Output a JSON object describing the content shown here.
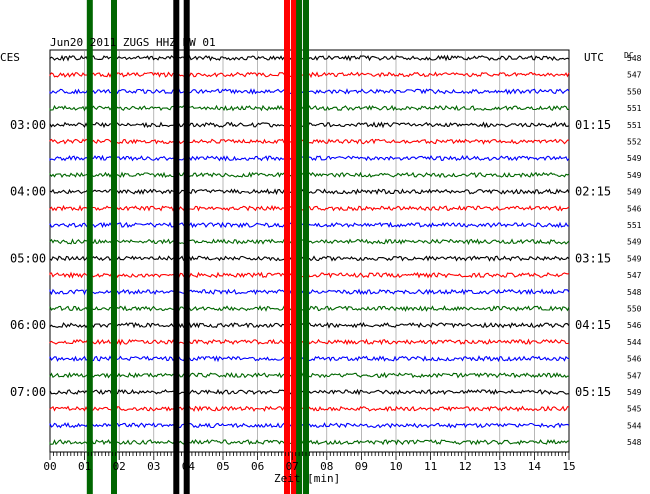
{
  "chart_data": {
    "type": "line",
    "title": "Jun20 2011  ZUGS HHZ BW 01",
    "left_label": "CES",
    "right_label": "UTC",
    "dc_label": "DC",
    "xlabel": "Zeit [min]",
    "xlim": [
      0,
      15
    ],
    "x_ticks": [
      "00",
      "01",
      "02",
      "03",
      "04",
      "05",
      "06",
      "07",
      "08",
      "09",
      "10",
      "11",
      "12",
      "13",
      "14",
      "15"
    ],
    "left_time_labels": [
      {
        "row": 4,
        "text": "03:00"
      },
      {
        "row": 8,
        "text": "04:00"
      },
      {
        "row": 12,
        "text": "05:00"
      },
      {
        "row": 16,
        "text": "06:00"
      },
      {
        "row": 20,
        "text": "07:00"
      }
    ],
    "right_time_labels": [
      {
        "row": 4,
        "text": "01:15"
      },
      {
        "row": 8,
        "text": "02:15"
      },
      {
        "row": 12,
        "text": "03:15"
      },
      {
        "row": 16,
        "text": "04:15"
      },
      {
        "row": 20,
        "text": "05:15"
      }
    ],
    "trace_colors": [
      "#000000",
      "#ff0000",
      "#0000ff",
      "#006600"
    ],
    "dc_values": [
      548,
      547,
      550,
      551,
      551,
      552,
      549,
      549,
      549,
      546,
      551,
      549,
      549,
      547,
      548,
      550,
      546,
      544,
      546,
      547,
      549,
      545,
      544,
      548
    ],
    "event_bands": [
      {
        "color": "#006600",
        "x": 1.15
      },
      {
        "color": "#006600",
        "x": 1.85
      },
      {
        "color": "#000000",
        "x": 3.65
      },
      {
        "color": "#000000",
        "x": 3.95
      },
      {
        "color": "#ff0000",
        "x": 6.85
      },
      {
        "color": "#ff0000",
        "x": 7.05
      },
      {
        "color": "#006600",
        "x": 7.2
      },
      {
        "color": "#006600",
        "x": 7.4
      }
    ]
  }
}
